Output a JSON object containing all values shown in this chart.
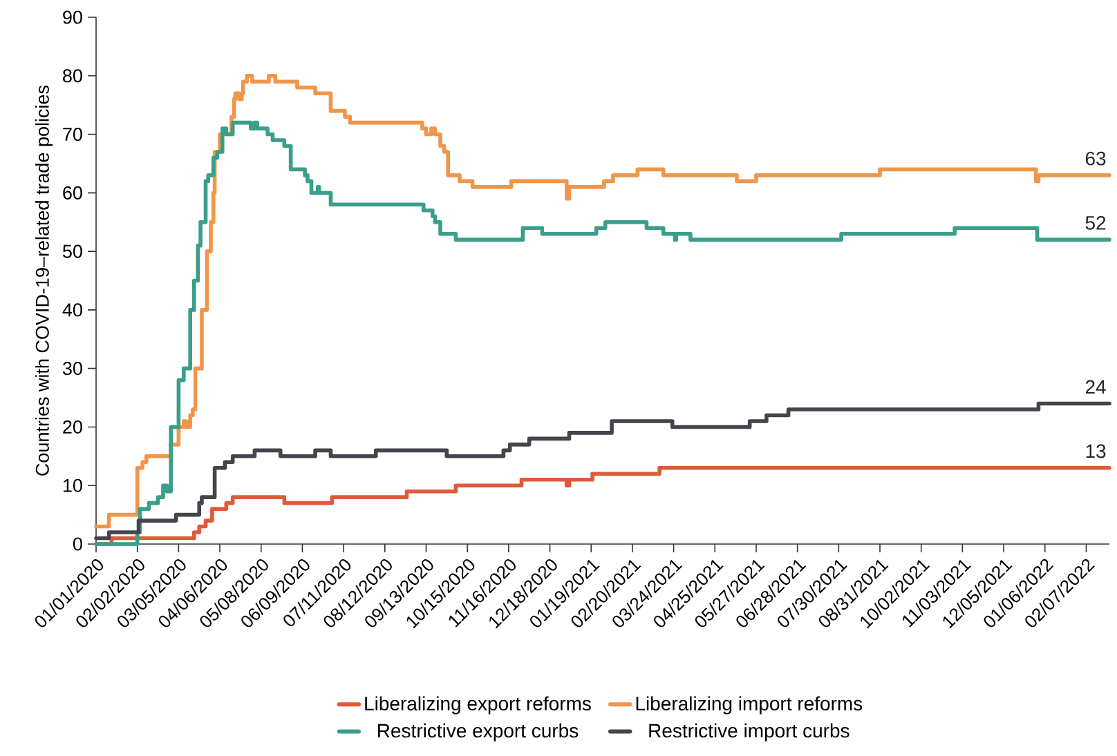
{
  "chart_data": {
    "type": "step",
    "ylabel": "Countries with COVID-19–related trade policies",
    "xlim": [
      "2020-01-01",
      "2022-02-25"
    ],
    "ylim": [
      0,
      90
    ],
    "yticks": [
      0,
      10,
      20,
      30,
      40,
      50,
      60,
      70,
      80,
      90
    ],
    "xticks": [
      {
        "value": "2020-01-01",
        "label": "01/01/2020"
      },
      {
        "value": "2020-02-02",
        "label": "02/02/2020"
      },
      {
        "value": "2020-03-05",
        "label": "03/05/2020"
      },
      {
        "value": "2020-04-06",
        "label": "04/06/2020"
      },
      {
        "value": "2020-05-08",
        "label": "05/08/2020"
      },
      {
        "value": "2020-06-09",
        "label": "06/09/2020"
      },
      {
        "value": "2020-07-11",
        "label": "07/11/2020"
      },
      {
        "value": "2020-08-12",
        "label": "08/12/2020"
      },
      {
        "value": "2020-09-13",
        "label": "09/13/2020"
      },
      {
        "value": "2020-10-15",
        "label": "10/15/2020"
      },
      {
        "value": "2020-11-16",
        "label": "11/16/2020"
      },
      {
        "value": "2020-12-18",
        "label": "12/18/2020"
      },
      {
        "value": "2021-01-19",
        "label": "01/19/2021"
      },
      {
        "value": "2021-02-20",
        "label": "02/20/2021"
      },
      {
        "value": "2021-03-24",
        "label": "03/24/2021"
      },
      {
        "value": "2021-04-25",
        "label": "04/25/2021"
      },
      {
        "value": "2021-05-27",
        "label": "05/27/2021"
      },
      {
        "value": "2021-06-28",
        "label": "06/28/2021"
      },
      {
        "value": "2021-07-30",
        "label": "07/30/2021"
      },
      {
        "value": "2021-08-31",
        "label": "08/31/2021"
      },
      {
        "value": "2021-10-02",
        "label": "10/02/2021"
      },
      {
        "value": "2021-11-03",
        "label": "11/03/2021"
      },
      {
        "value": "2021-12-05",
        "label": "12/05/2021"
      },
      {
        "value": "2022-01-06",
        "label": "01/06/2022"
      },
      {
        "value": "2022-02-07",
        "label": "02/07/2022"
      }
    ],
    "legend": "bottom",
    "grid": false,
    "marker": "none",
    "line_style": "solid",
    "series": [
      {
        "name": "Liberalizing export reforms",
        "color": "#e05a3a",
        "x": [
          "2020-01-01",
          "2020-01-13",
          "2020-03-17",
          "2020-03-21",
          "2020-03-26",
          "2020-03-31",
          "2020-04-11",
          "2020-04-16",
          "2020-05-26",
          "2020-07-02",
          "2020-08-29",
          "2020-10-06",
          "2020-11-26",
          "2020-12-31",
          "2021-01-02",
          "2021-01-20",
          "2021-03-13",
          "2022-02-25"
        ],
        "values": [
          0,
          1,
          2,
          3,
          4,
          6,
          7,
          8,
          7,
          8,
          9,
          10,
          11,
          10,
          11,
          12,
          13,
          13
        ]
      },
      {
        "name": "Liberalizing import reforms",
        "color": "#f0964a",
        "x": [
          "2020-01-01",
          "2020-01-11",
          "2020-02-02",
          "2020-02-06",
          "2020-02-09",
          "2020-02-28",
          "2020-03-05",
          "2020-03-09",
          "2020-03-11",
          "2020-03-14",
          "2020-03-16",
          "2020-03-18",
          "2020-03-23",
          "2020-03-27",
          "2020-03-30",
          "2020-04-01",
          "2020-04-02",
          "2020-04-06",
          "2020-04-15",
          "2020-04-17",
          "2020-04-18",
          "2020-04-21",
          "2020-04-23",
          "2020-04-24",
          "2020-04-27",
          "2020-05-01",
          "2020-05-14",
          "2020-05-19",
          "2020-06-05",
          "2020-06-19",
          "2020-07-01",
          "2020-07-12",
          "2020-07-16",
          "2020-09-10",
          "2020-09-13",
          "2020-09-17",
          "2020-09-20",
          "2020-09-24",
          "2020-09-27",
          "2020-09-30",
          "2020-10-09",
          "2020-10-19",
          "2020-11-18",
          "2020-12-31",
          "2021-01-02",
          "2021-01-29",
          "2021-02-05",
          "2021-02-24",
          "2021-03-16",
          "2021-05-12",
          "2021-05-27",
          "2021-08-31",
          "2021-12-30",
          "2022-01-01",
          "2022-02-25"
        ],
        "values": [
          3,
          5,
          13,
          14,
          15,
          17,
          20,
          21,
          20,
          22,
          23,
          30,
          40,
          50,
          55,
          60,
          67,
          70,
          73,
          76,
          77,
          76,
          77,
          79,
          80,
          79,
          80,
          79,
          78,
          77,
          74,
          73,
          72,
          71,
          70,
          71,
          70,
          68,
          67,
          63,
          62,
          61,
          62,
          59,
          61,
          62,
          63,
          64,
          63,
          62,
          63,
          64,
          62,
          63,
          63
        ]
      },
      {
        "name": "Restrictive export curbs",
        "color": "#3a9e8a",
        "x": [
          "2020-01-01",
          "2020-02-02",
          "2020-02-04",
          "2020-02-11",
          "2020-02-18",
          "2020-02-22",
          "2020-02-25",
          "2020-02-28",
          "2020-03-05",
          "2020-03-09",
          "2020-03-14",
          "2020-03-17",
          "2020-03-20",
          "2020-03-22",
          "2020-03-26",
          "2020-03-28",
          "2020-04-01",
          "2020-04-04",
          "2020-04-08",
          "2020-04-11",
          "2020-04-16",
          "2020-04-30",
          "2020-05-03",
          "2020-05-05",
          "2020-05-13",
          "2020-05-17",
          "2020-05-26",
          "2020-05-31",
          "2020-06-11",
          "2020-06-13",
          "2020-06-16",
          "2020-06-21",
          "2020-06-22",
          "2020-07-01",
          "2020-09-11",
          "2020-09-18",
          "2020-09-20",
          "2020-09-24",
          "2020-10-06",
          "2020-11-27",
          "2020-12-12",
          "2021-01-23",
          "2021-01-30",
          "2021-03-03",
          "2021-03-16",
          "2021-03-25",
          "2021-03-26",
          "2021-04-06",
          "2021-08-01",
          "2021-10-28",
          "2021-12-31",
          "2022-02-25"
        ],
        "values": [
          0,
          2,
          6,
          7,
          8,
          10,
          9,
          20,
          28,
          30,
          40,
          45,
          51,
          55,
          62,
          63,
          66,
          67,
          71,
          70,
          72,
          71,
          72,
          71,
          70,
          69,
          68,
          64,
          63,
          62,
          60,
          61,
          60,
          58,
          57,
          56,
          55,
          53,
          52,
          54,
          53,
          54,
          55,
          54,
          53,
          52,
          53,
          52,
          53,
          54,
          52,
          52
        ]
      },
      {
        "name": "Restrictive import curbs",
        "color": "#44444c",
        "x": [
          "2020-01-01",
          "2020-01-11",
          "2020-02-03",
          "2020-03-03",
          "2020-03-21",
          "2020-03-23",
          "2020-04-02",
          "2020-04-10",
          "2020-04-16",
          "2020-05-03",
          "2020-05-23",
          "2020-06-19",
          "2020-07-01",
          "2020-08-05",
          "2020-09-29",
          "2020-11-12",
          "2020-11-17",
          "2020-12-02",
          "2021-01-02",
          "2021-02-04",
          "2021-03-23",
          "2021-05-22",
          "2021-06-04",
          "2021-06-21",
          "2022-01-01",
          "2022-02-25"
        ],
        "values": [
          1,
          2,
          4,
          5,
          7,
          8,
          13,
          14,
          15,
          16,
          15,
          16,
          15,
          16,
          15,
          16,
          17,
          18,
          19,
          21,
          20,
          21,
          22,
          23,
          24,
          24
        ]
      }
    ],
    "annotations": [
      {
        "text": "63",
        "x": "2022-02-25",
        "y": 63
      },
      {
        "text": "52",
        "x": "2022-02-25",
        "y": 52
      },
      {
        "text": "24",
        "x": "2022-02-25",
        "y": 24
      },
      {
        "text": "13",
        "x": "2022-02-25",
        "y": 13
      }
    ]
  }
}
